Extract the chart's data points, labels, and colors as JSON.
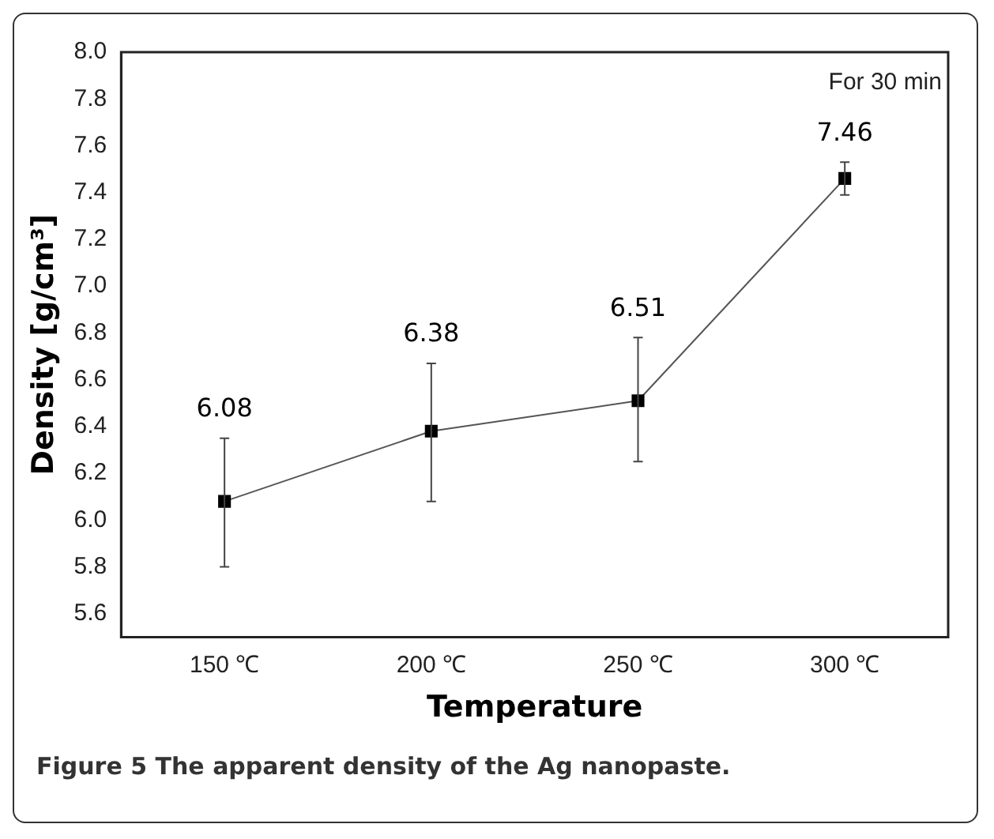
{
  "chart_data": {
    "type": "line",
    "xlabel": "Temperature",
    "ylabel": "Density [g/cm³]",
    "categories": [
      "150 ℃",
      "200 ℃",
      "250 ℃",
      "300 ℃"
    ],
    "series": [
      {
        "color": "#000000",
        "values": [
          6.08,
          6.38,
          6.51,
          7.46
        ],
        "errors": [
          [
            5.8,
            6.35
          ],
          [
            6.08,
            6.67
          ],
          [
            6.25,
            6.78
          ],
          [
            7.39,
            7.53
          ]
        ]
      }
    ],
    "ylim": [
      5.5,
      8.0
    ],
    "yticks": [
      5.6,
      5.8,
      {
        "value": 6,
        "label": "6.0"
      },
      6.2,
      6.4,
      6.6,
      6.8,
      {
        "value": 7,
        "label": "7.0"
      },
      7.2,
      7.4,
      7.6,
      7.8,
      {
        "value": 8,
        "label": "8.0"
      }
    ],
    "data_labels": true,
    "marker": "square",
    "line_style": "solid",
    "grid": false,
    "legend": false,
    "annotations": [
      "For 30 min",
      "Figure 5 The apparent density of the Ag nanopaste."
    ]
  }
}
